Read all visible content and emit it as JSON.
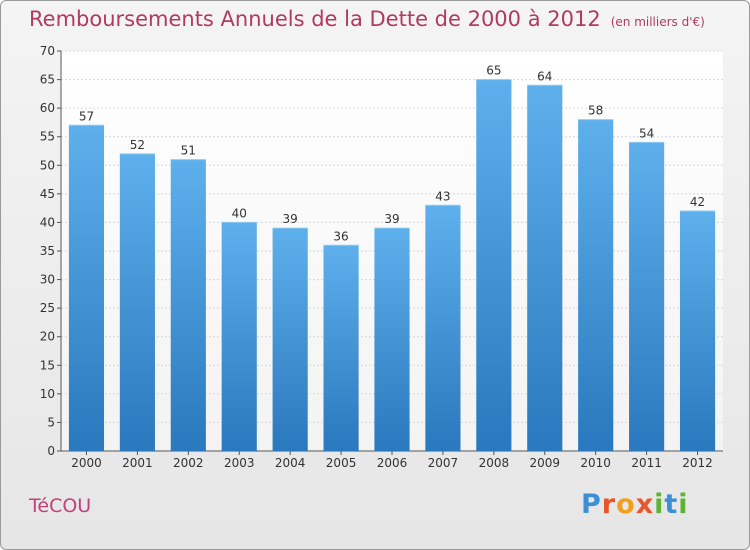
{
  "title": "Remboursements Annuels de la Dette de 2000 à 2012",
  "unit": "(en milliers d'€)",
  "commune": "TéCOU",
  "logo": {
    "letters": [
      "P",
      "r",
      "o",
      "x",
      "i",
      "t",
      "i"
    ],
    "colors": [
      "#3a8fd6",
      "#e8552b",
      "#f0a020",
      "#e8552b",
      "#5fb233",
      "#3a8fd6",
      "#5fb233"
    ]
  },
  "chart_data": {
    "type": "bar",
    "title": "Remboursements Annuels de la Dette de 2000 à 2012",
    "categories": [
      "2000",
      "2001",
      "2002",
      "2003",
      "2004",
      "2005",
      "2006",
      "2007",
      "2008",
      "2009",
      "2010",
      "2011",
      "2012"
    ],
    "values": [
      57,
      52,
      51,
      40,
      39,
      36,
      39,
      43,
      65,
      64,
      58,
      54,
      42
    ],
    "ylim": [
      0,
      70
    ],
    "yticks": [
      0,
      5,
      10,
      15,
      20,
      25,
      30,
      35,
      40,
      45,
      50,
      55,
      60,
      65,
      70
    ],
    "grid": true,
    "bar_color": "#3f98db"
  }
}
